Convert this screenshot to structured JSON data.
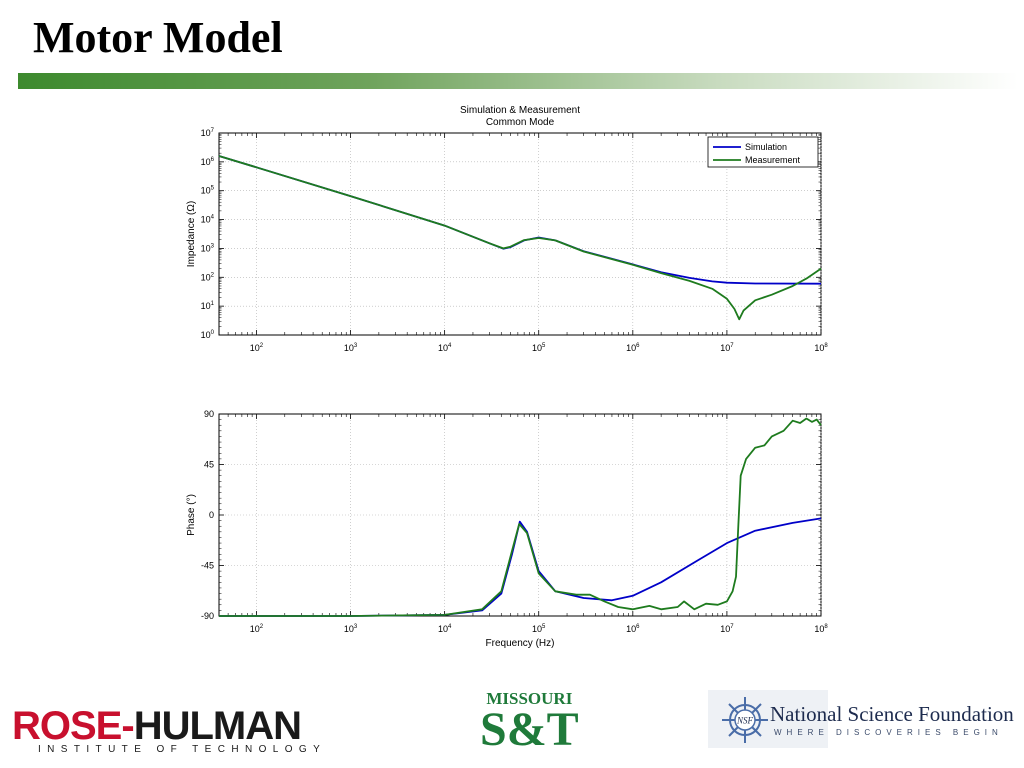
{
  "slide": {
    "title": "Motor Model"
  },
  "colors": {
    "simulation": "#0000c8",
    "measurement": "#1e7b1e",
    "accent_bar": "#3d8a2e"
  },
  "chart_data": [
    {
      "type": "line",
      "title": "Simulation & Measurement",
      "subtitle": "Common Mode",
      "xlabel": "",
      "ylabel": "Impedance (Ω)",
      "x_scale": "log",
      "y_scale": "log",
      "xlim": [
        40,
        100000000
      ],
      "ylim": [
        1,
        10000000
      ],
      "x_tick_labels": [
        "10",
        "10",
        "10",
        "10",
        "10",
        "10",
        "10"
      ],
      "x_tick_exponents": [
        "2",
        "3",
        "4",
        "5",
        "6",
        "7",
        "8"
      ],
      "y_tick_labels": [
        "10",
        "10",
        "10",
        "10",
        "10",
        "10",
        "10",
        "10"
      ],
      "y_tick_exponents": [
        "0",
        "1",
        "2",
        "3",
        "4",
        "5",
        "6",
        "7"
      ],
      "grid": true,
      "legend_position": "top-right",
      "series": [
        {
          "name": "Simulation",
          "color": "#0000c8",
          "points": [
            [
              40,
              1600000
            ],
            [
              100,
              650000
            ],
            [
              1000,
              65000
            ],
            [
              10000,
              6200
            ],
            [
              30000,
              1500
            ],
            [
              42000,
              980
            ],
            [
              50000,
              1100
            ],
            [
              70000,
              1900
            ],
            [
              100000,
              2400
            ],
            [
              150000,
              1900
            ],
            [
              300000,
              800
            ],
            [
              1000000,
              280
            ],
            [
              2000000,
              150
            ],
            [
              4000000,
              95
            ],
            [
              7000000,
              72
            ],
            [
              10000000,
              65
            ],
            [
              20000000,
              61
            ],
            [
              100000000,
              60
            ]
          ]
        },
        {
          "name": "Measurement",
          "color": "#1e7b1e",
          "points": [
            [
              40,
              1600000
            ],
            [
              100,
              650000
            ],
            [
              1000,
              65000
            ],
            [
              10000,
              6200
            ],
            [
              30000,
              1500
            ],
            [
              42000,
              1000
            ],
            [
              50000,
              1150
            ],
            [
              70000,
              1950
            ],
            [
              100000,
              2300
            ],
            [
              150000,
              1900
            ],
            [
              300000,
              780
            ],
            [
              1000000,
              270
            ],
            [
              2000000,
              140
            ],
            [
              4000000,
              75
            ],
            [
              7000000,
              40
            ],
            [
              10000000,
              18
            ],
            [
              12000000,
              8
            ],
            [
              13500000,
              3.5
            ],
            [
              15000000,
              7
            ],
            [
              20000000,
              16
            ],
            [
              30000000,
              25
            ],
            [
              50000000,
              50
            ],
            [
              70000000,
              90
            ],
            [
              100000000,
              200
            ]
          ]
        }
      ]
    },
    {
      "type": "line",
      "title": "",
      "xlabel": "Frequency (Hz)",
      "ylabel": "Phase (°)",
      "x_scale": "log",
      "xlim": [
        40,
        100000000
      ],
      "ylim": [
        -90,
        90
      ],
      "x_tick_labels": [
        "10",
        "10",
        "10",
        "10",
        "10",
        "10",
        "10"
      ],
      "x_tick_exponents": [
        "2",
        "3",
        "4",
        "5",
        "6",
        "7",
        "8"
      ],
      "y_ticks": [
        90,
        45,
        0,
        -45,
        -90
      ],
      "y_tick_labels": [
        "90",
        "45",
        "0",
        "-45",
        "-90"
      ],
      "grid": true,
      "series": [
        {
          "name": "Simulation",
          "color": "#0000c8",
          "points": [
            [
              40,
              -90
            ],
            [
              1000,
              -90
            ],
            [
              10000,
              -89
            ],
            [
              25000,
              -85
            ],
            [
              40000,
              -70
            ],
            [
              52000,
              -35
            ],
            [
              63000,
              -6
            ],
            [
              75000,
              -15
            ],
            [
              100000,
              -50
            ],
            [
              150000,
              -68
            ],
            [
              300000,
              -74
            ],
            [
              600000,
              -76
            ],
            [
              1000000,
              -72
            ],
            [
              2000000,
              -60
            ],
            [
              5000000,
              -40
            ],
            [
              10000000,
              -25
            ],
            [
              20000000,
              -14
            ],
            [
              50000000,
              -7
            ],
            [
              100000000,
              -3
            ]
          ]
        },
        {
          "name": "Measurement",
          "color": "#1e7b1e",
          "points": [
            [
              40,
              -90
            ],
            [
              1000,
              -90
            ],
            [
              10000,
              -89
            ],
            [
              25000,
              -84
            ],
            [
              40000,
              -68
            ],
            [
              52000,
              -32
            ],
            [
              62000,
              -8
            ],
            [
              75000,
              -16
            ],
            [
              100000,
              -52
            ],
            [
              150000,
              -68
            ],
            [
              250000,
              -71
            ],
            [
              350000,
              -71
            ],
            [
              500000,
              -77
            ],
            [
              700000,
              -82
            ],
            [
              1000000,
              -84
            ],
            [
              1500000,
              -81
            ],
            [
              2000000,
              -84
            ],
            [
              3000000,
              -82
            ],
            [
              3500000,
              -77
            ],
            [
              4500000,
              -84
            ],
            [
              6000000,
              -79
            ],
            [
              8000000,
              -80
            ],
            [
              10000000,
              -77
            ],
            [
              11500000,
              -68
            ],
            [
              12500000,
              -55
            ],
            [
              13200000,
              -10
            ],
            [
              14000000,
              35
            ],
            [
              16000000,
              50
            ],
            [
              20000000,
              60
            ],
            [
              25000000,
              62
            ],
            [
              30000000,
              70
            ],
            [
              40000000,
              75
            ],
            [
              50000000,
              84
            ],
            [
              60000000,
              82
            ],
            [
              70000000,
              86
            ],
            [
              80000000,
              83
            ],
            [
              90000000,
              85
            ],
            [
              100000000,
              80
            ]
          ]
        }
      ]
    }
  ],
  "logos": {
    "rose_hulman": {
      "main_red": "ROSE",
      "main_dark": "HULMAN",
      "sub": "INSTITUTE OF TECHNOLOGY"
    },
    "missouri_st": {
      "top": "MISSOURI",
      "main": "S&T"
    },
    "nsf": {
      "badge": "NSF",
      "name": "National Science Foundation",
      "tagline": "WHERE DISCOVERIES BEGIN"
    }
  }
}
